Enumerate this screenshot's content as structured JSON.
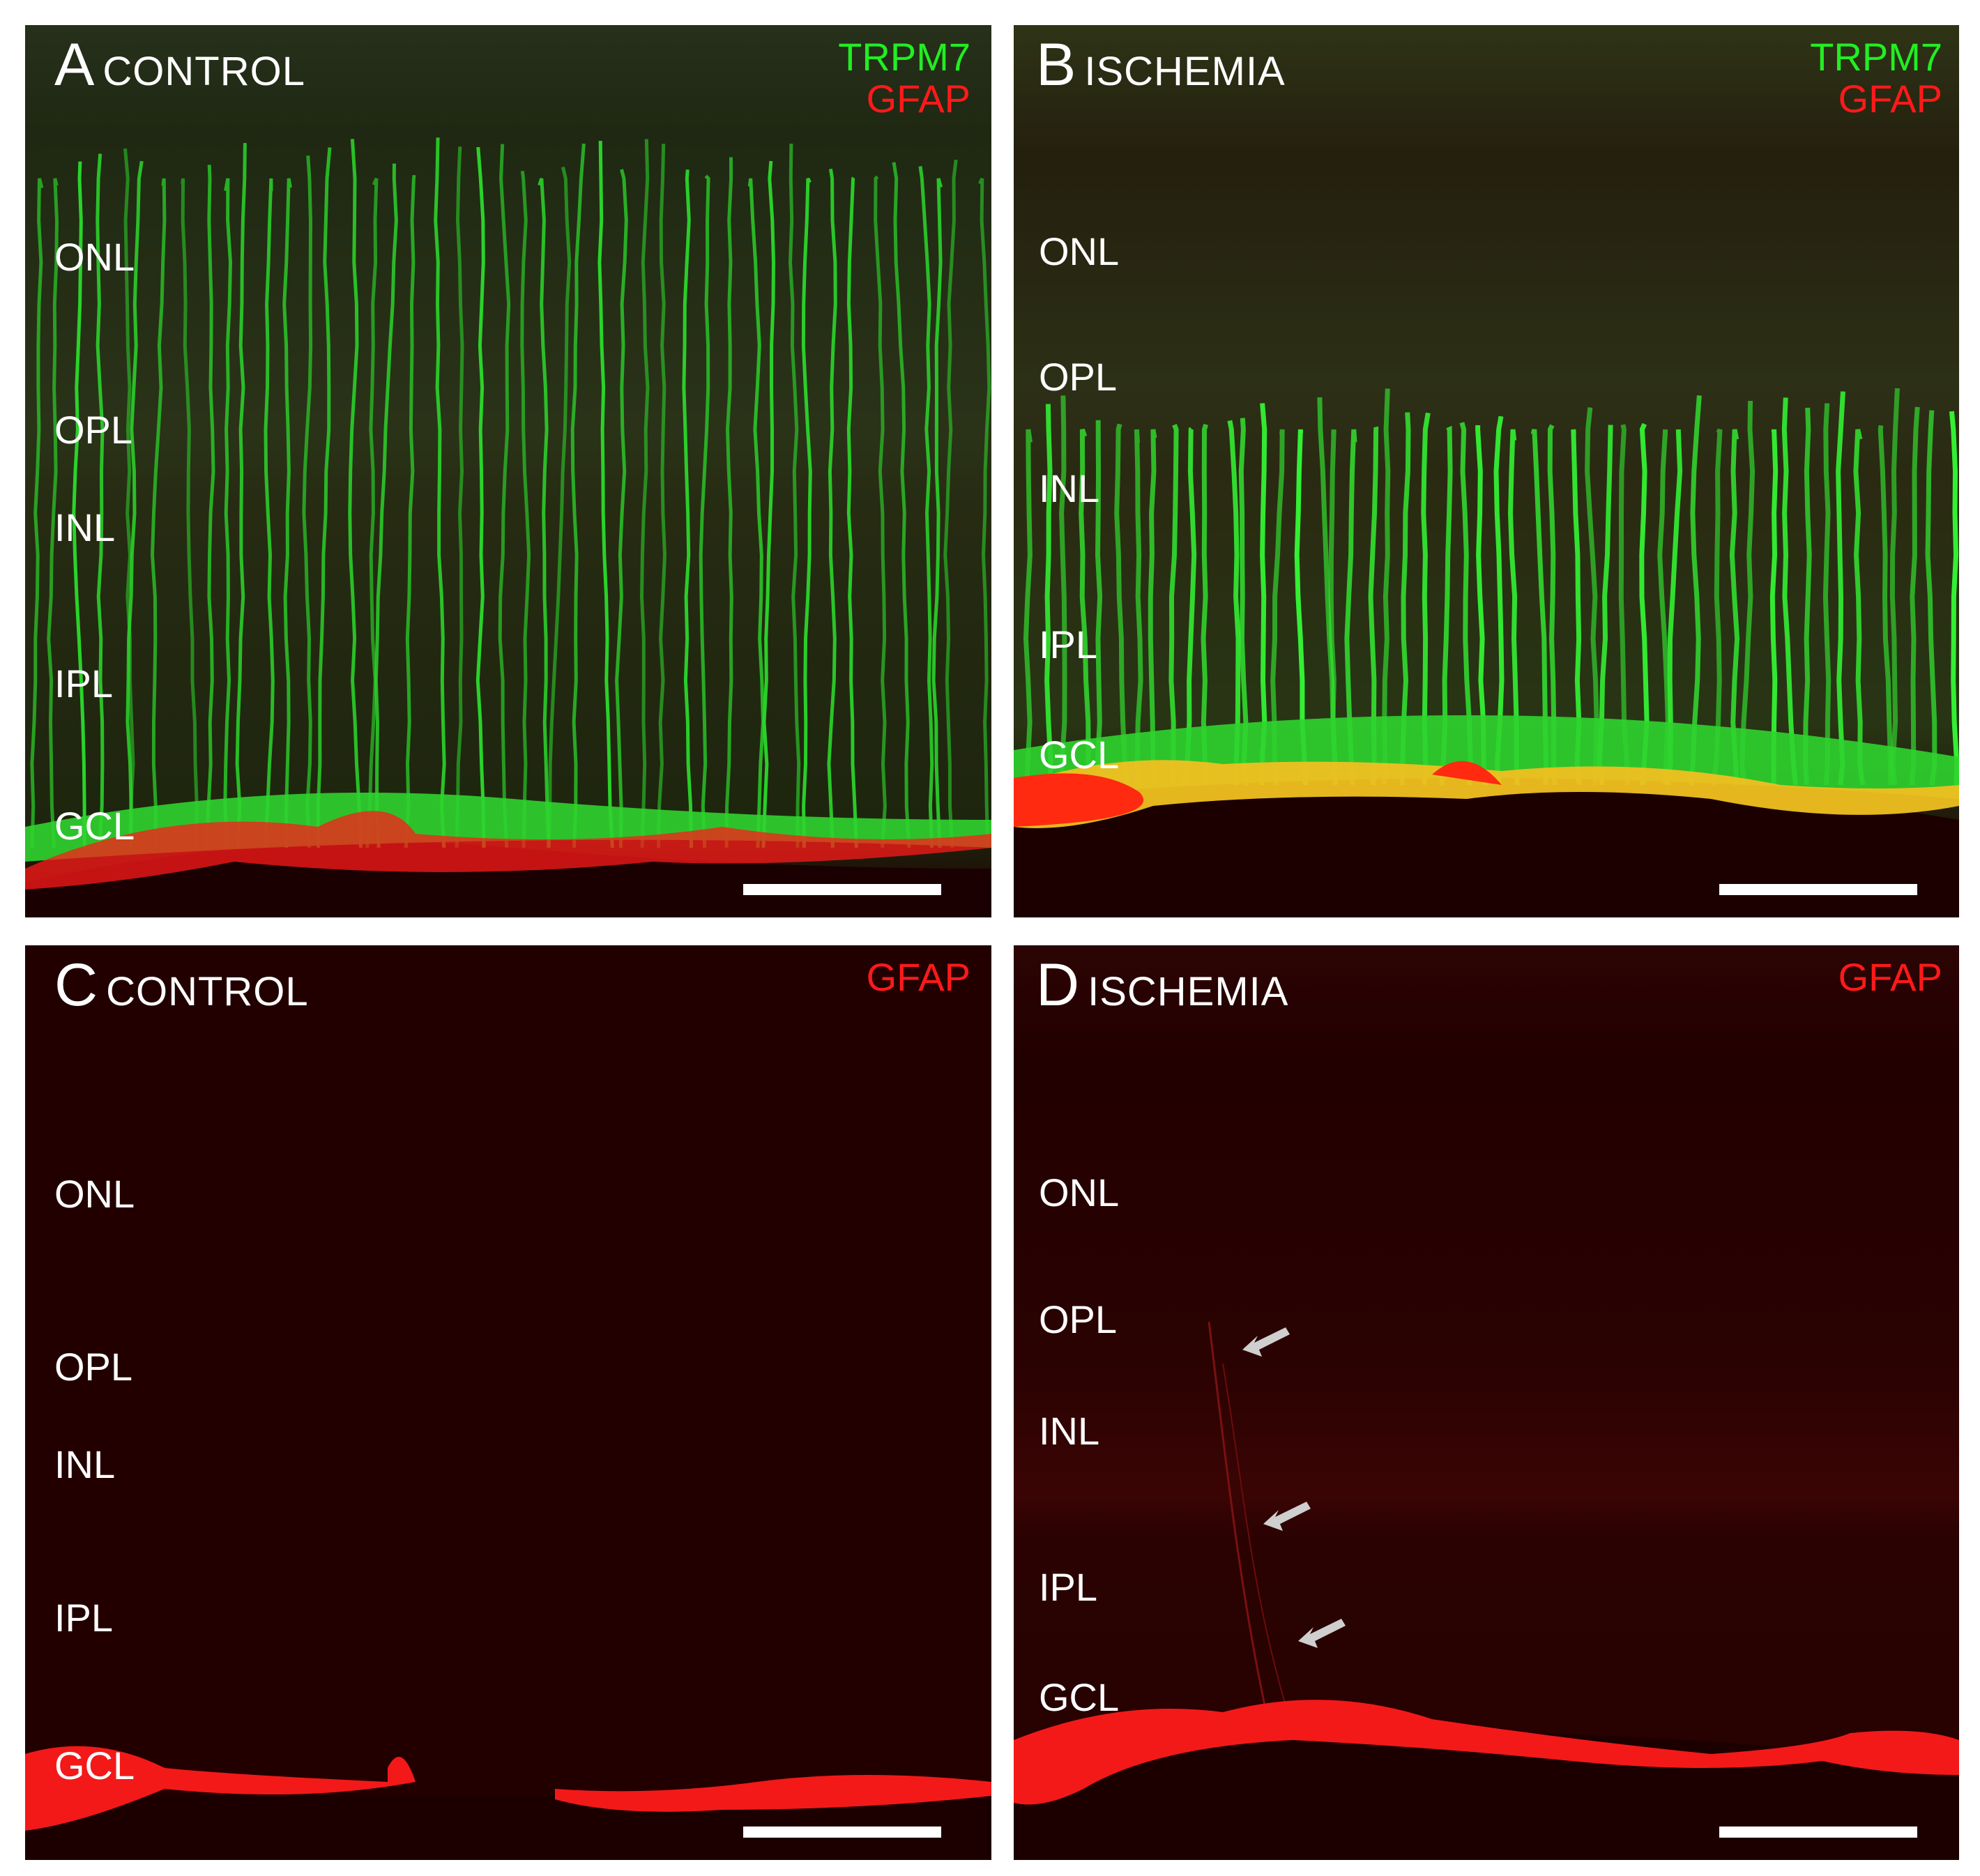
{
  "colors": {
    "trpm7": "#22ee22",
    "gfap": "#ff1a1a",
    "background_dark": "#240000",
    "background_green": "#222a0f",
    "layer_label": "#ffffff",
    "arrow": "#cccccc"
  },
  "panels": [
    {
      "id": "A",
      "letter": "A",
      "condition": "CONTROL",
      "markers": [
        {
          "text": "TRPM7",
          "stain": "trpm7"
        },
        {
          "text": "GFAP",
          "stain": "gfap"
        }
      ],
      "layers": [
        "ONL",
        "OPL",
        "INL",
        "IPL",
        "GCL"
      ],
      "has_scale_bar": true
    },
    {
      "id": "B",
      "letter": "B",
      "condition": "ISCHEMIA",
      "markers": [
        {
          "text": "TRPM7",
          "stain": "trpm7"
        },
        {
          "text": "GFAP",
          "stain": "gfap"
        }
      ],
      "layers": [
        "ONL",
        "OPL",
        "INL",
        "IPL",
        "GCL"
      ],
      "has_scale_bar": true
    },
    {
      "id": "C",
      "letter": "C",
      "condition": "CONTROL",
      "markers": [
        {
          "text": "GFAP",
          "stain": "gfap"
        }
      ],
      "layers": [
        "ONL",
        "OPL",
        "INL",
        "IPL",
        "GCL"
      ],
      "has_scale_bar": true
    },
    {
      "id": "D",
      "letter": "D",
      "condition": "ISCHEMIA",
      "markers": [
        {
          "text": "GFAP",
          "stain": "gfap"
        }
      ],
      "layers": [
        "ONL",
        "OPL",
        "INL",
        "IPL",
        "GCL"
      ],
      "has_scale_bar": true,
      "arrows": 3
    }
  ]
}
